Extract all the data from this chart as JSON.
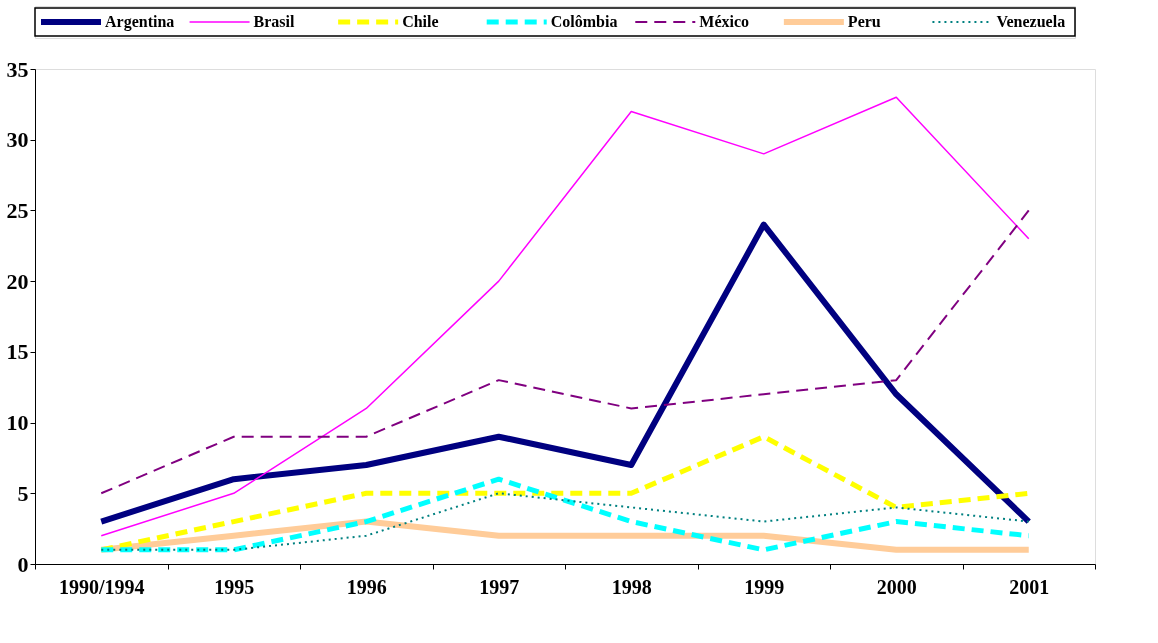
{
  "chart_data": {
    "type": "line",
    "categories": [
      "1990/1994",
      "1995",
      "1996",
      "1997",
      "1998",
      "1999",
      "2000",
      "2001"
    ],
    "series": [
      {
        "name": "Argentina",
        "color": "#000080",
        "line_style": "solid",
        "values": [
          3,
          6,
          7,
          9,
          7,
          24,
          12,
          3
        ]
      },
      {
        "name": "Brasil",
        "color": "#ff00ff",
        "line_style": "solid",
        "values": [
          2,
          5,
          11,
          20,
          32,
          29,
          33,
          23
        ]
      },
      {
        "name": "Chile",
        "color": "#ffff00",
        "line_style": "dashed",
        "values": [
          1,
          3,
          5,
          5,
          5,
          9,
          4,
          5
        ]
      },
      {
        "name": "Colômbia",
        "color": "#00ffff",
        "line_style": "dashed",
        "values": [
          1,
          1,
          3,
          6,
          3,
          1,
          3,
          2
        ]
      },
      {
        "name": "México",
        "color": "#800080",
        "line_style": "dashed",
        "values": [
          5,
          9,
          9,
          13,
          11,
          12,
          13,
          25
        ]
      },
      {
        "name": "Peru",
        "color": "#ffcc99",
        "line_style": "solid",
        "values": [
          1,
          2,
          3,
          2,
          2,
          2,
          1,
          1
        ]
      },
      {
        "name": "Venezuela",
        "color": "#008080",
        "line_style": "dotted",
        "values": [
          1,
          1,
          2,
          5,
          4,
          3,
          4,
          3
        ]
      }
    ],
    "ylim": [
      0,
      35
    ],
    "yticks": [
      0,
      5,
      10,
      15,
      20,
      25,
      30,
      35
    ],
    "grid": false,
    "legend": "top",
    "marker": "none"
  }
}
